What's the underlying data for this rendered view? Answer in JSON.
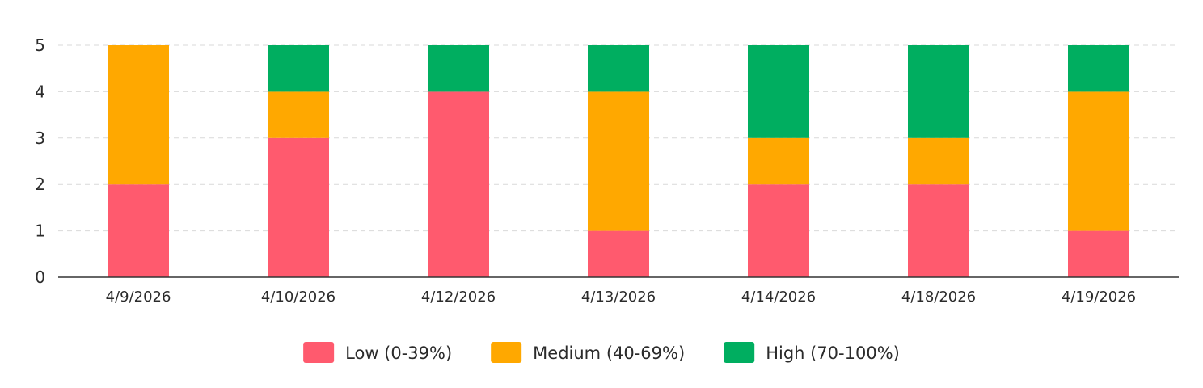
{
  "chart_data": {
    "type": "bar",
    "stacked": true,
    "categories": [
      "4/9/2026",
      "4/10/2026",
      "4/12/2026",
      "4/13/2026",
      "4/14/2026",
      "4/18/2026",
      "4/19/2026"
    ],
    "series": [
      {
        "name": "Low (0-39%)",
        "color": "#FF5A6E",
        "values": [
          2,
          3,
          4,
          1,
          2,
          2,
          1
        ]
      },
      {
        "name": "Medium (40-69%)",
        "color": "#FFA800",
        "values": [
          3,
          1,
          0,
          3,
          1,
          1,
          3
        ]
      },
      {
        "name": "High (70-100%)",
        "color": "#00AE60",
        "values": [
          0,
          1,
          1,
          1,
          2,
          2,
          1
        ]
      }
    ],
    "title": "",
    "xlabel": "",
    "ylabel": "",
    "ylim": [
      0,
      5
    ],
    "yticks": [
      0,
      1,
      2,
      3,
      4,
      5
    ],
    "grid": true,
    "legend_position": "bottom"
  }
}
